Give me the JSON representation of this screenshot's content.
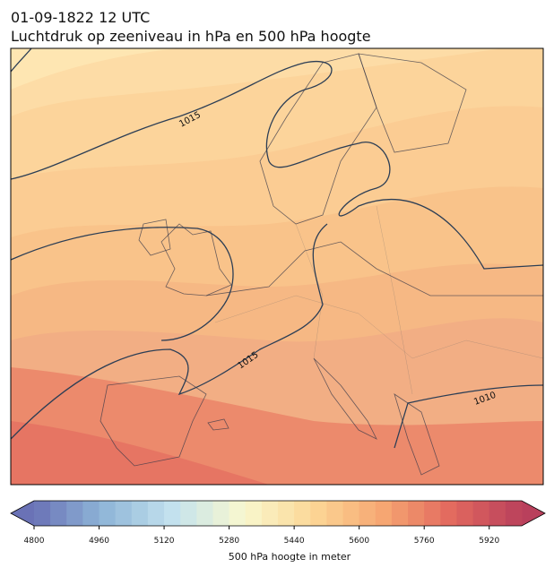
{
  "header": {
    "title": "01-09-1822 12 UTC",
    "subtitle": "Luchtdruk op zeeniveau in hPa en 500 hPa hoogte"
  },
  "isobar_labels": [
    "1015",
    "1015",
    "1010"
  ],
  "colorbar": {
    "label": "500 hPa hoogte in meter",
    "levels": [
      4800,
      4840,
      4880,
      4920,
      4960,
      5000,
      5040,
      5080,
      5120,
      5160,
      5200,
      5240,
      5280,
      5320,
      5360,
      5400,
      5440,
      5480,
      5520,
      5560,
      5600,
      5640,
      5680,
      5720,
      5760,
      5800,
      5840,
      5880,
      5920,
      5960,
      6000
    ],
    "ticks": [
      4800,
      4960,
      5120,
      5280,
      5440,
      5600,
      5760,
      5920
    ],
    "colormap": [
      "#6a72b6",
      "#8fb6d8",
      "#c4e2ee",
      "#f8f8cf",
      "#fcd796",
      "#f6a772",
      "#e2685e",
      "#b9405c"
    ]
  }
}
